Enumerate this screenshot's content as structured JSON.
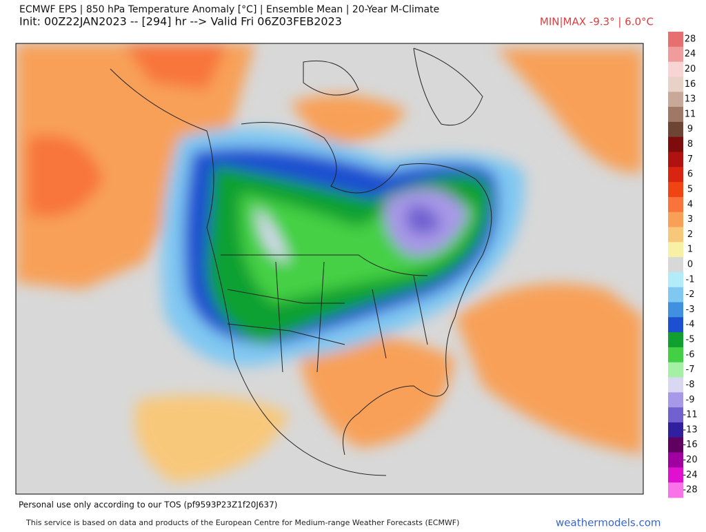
{
  "header": {
    "title": "ECMWF EPS | 850 hPa Temperature Anomaly [°C] | Ensemble Mean | 20-Year M-Climate",
    "init": "Init: 00Z22JAN2023 -- [294] hr --> Valid Fri 06Z03FEB2023",
    "minmax": "MIN|MAX -9.3° | 6.0°C"
  },
  "legend": {
    "items": [
      {
        "label": 28,
        "color": "#e86f6f"
      },
      {
        "label": 24,
        "color": "#f09c9c"
      },
      {
        "label": 20,
        "color": "#f8d4d4"
      },
      {
        "label": 16,
        "color": "#e8d2c8"
      },
      {
        "label": 13,
        "color": "#c8a898"
      },
      {
        "label": 11,
        "color": "#a07868"
      },
      {
        "label": 9,
        "color": "#6e4434"
      },
      {
        "label": 8,
        "color": "#7e0c0c"
      },
      {
        "label": 7,
        "color": "#b01210"
      },
      {
        "label": 6,
        "color": "#d82410"
      },
      {
        "label": 5,
        "color": "#f04412"
      },
      {
        "label": 4,
        "color": "#f8743a"
      },
      {
        "label": 3,
        "color": "#f8a058"
      },
      {
        "label": 2,
        "color": "#f8c87a"
      },
      {
        "label": 1,
        "color": "#f8f0a4"
      },
      {
        "label": 0,
        "color": "#d8d8d8"
      },
      {
        "label": -1,
        "color": "#b2ecf8"
      },
      {
        "label": -2,
        "color": "#80c8f2"
      },
      {
        "label": -3,
        "color": "#4090e2"
      },
      {
        "label": -4,
        "color": "#1c50d0"
      },
      {
        "label": -5,
        "color": "#10a030"
      },
      {
        "label": -6,
        "color": "#44d044"
      },
      {
        "label": -7,
        "color": "#a4f0a4"
      },
      {
        "label": -8,
        "color": "#d8d8f2"
      },
      {
        "label": -9,
        "color": "#a898e8"
      },
      {
        "label": -11,
        "color": "#7060d0"
      },
      {
        "label": -13,
        "color": "#3020a0"
      },
      {
        "label": -16,
        "color": "#600060"
      },
      {
        "label": -20,
        "color": "#a000a0"
      },
      {
        "label": -24,
        "color": "#e010d0"
      },
      {
        "label": -28,
        "color": "#f872e8"
      }
    ]
  },
  "footer": {
    "tos": "Personal use only according to our TOS (pf9593P23Z1f20J637)",
    "notice": "This service is based on data and products of the European Centre for Medium-range Weather Forecasts (ECMWF)",
    "site": "weathermodels.com"
  }
}
